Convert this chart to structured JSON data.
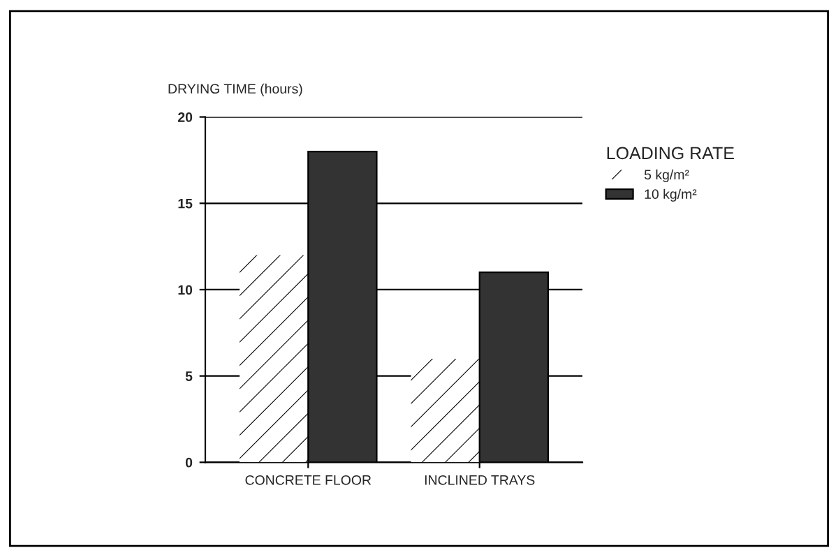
{
  "chart_data": {
    "type": "bar",
    "ylabel": "DRYING TIME (hours)",
    "legend_title": "LOADING RATE",
    "categories": [
      "CONCRETE FLOOR",
      "INCLINED TRAYS"
    ],
    "series": [
      {
        "name": "5 kg/m²",
        "color": "#ffffff",
        "values": [
          12,
          6
        ]
      },
      {
        "name": "10 kg/m²",
        "color": "#333333",
        "values": [
          18,
          11
        ]
      }
    ],
    "ylim": [
      0,
      20
    ],
    "yticks": [
      0,
      5,
      10,
      15,
      20
    ],
    "grid": "y",
    "legend": "right"
  }
}
